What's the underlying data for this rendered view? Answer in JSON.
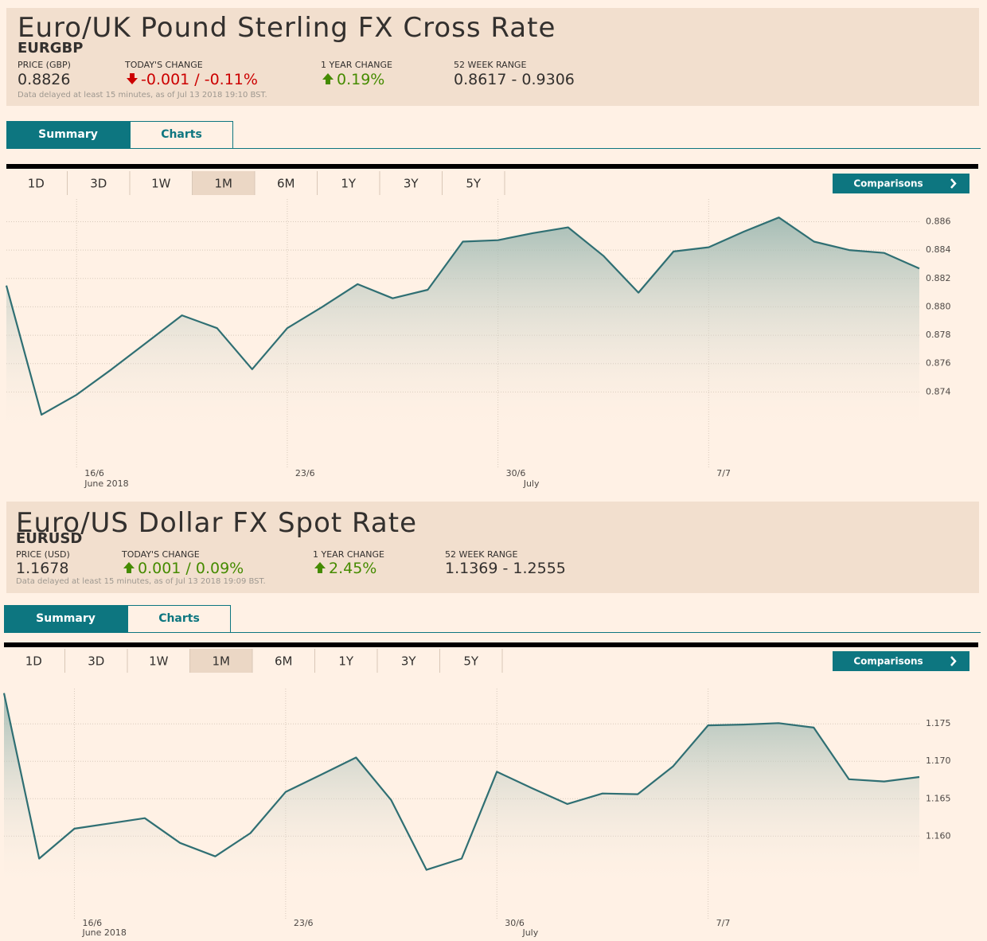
{
  "panels": [
    {
      "title": "Euro/UK Pound Sterling FX Cross Rate",
      "symbol": "EURGBP",
      "stats": [
        {
          "label": "PRICE (GBP)",
          "value": "0.8826"
        },
        {
          "label": "TODAY'S CHANGE",
          "value": "-0.001 / -0.11%",
          "direction": "down"
        },
        {
          "label": "1 YEAR CHANGE",
          "value": "0.19%",
          "direction": "up"
        },
        {
          "label": "52 WEEK RANGE",
          "value": "0.8617 - 0.9306"
        }
      ],
      "note": "Data delayed at least 15 minutes, as of Jul 13 2018 19:10 BST.",
      "tabs": [
        "Summary",
        "Charts"
      ],
      "active_tab": 0,
      "ranges": [
        "1D",
        "3D",
        "1W",
        "1M",
        "6M",
        "1Y",
        "3Y",
        "5Y"
      ],
      "active_range": 3,
      "comparisons": "Comparisons"
    },
    {
      "title": "Euro/US Dollar FX Spot Rate",
      "symbol": "EURUSD",
      "stats": [
        {
          "label": "PRICE (USD)",
          "value": "1.1678"
        },
        {
          "label": "TODAY'S CHANGE",
          "value": "0.001 / 0.09%",
          "direction": "up"
        },
        {
          "label": "1 YEAR CHANGE",
          "value": "2.45%",
          "direction": "up"
        },
        {
          "label": "52 WEEK RANGE",
          "value": "1.1369 - 1.2555"
        }
      ],
      "note": "Data delayed at least 15 minutes, as of Jul 13 2018 19:09 BST.",
      "tabs": [
        "Summary",
        "Charts"
      ],
      "active_tab": 0,
      "ranges": [
        "1D",
        "3D",
        "1W",
        "1M",
        "6M",
        "1Y",
        "3Y",
        "5Y"
      ],
      "active_range": 3,
      "comparisons": "Comparisons"
    }
  ],
  "chart_data": [
    {
      "type": "line",
      "color": "#2f6f73",
      "grid": true,
      "categories": [
        null,
        null,
        "16/6",
        null,
        null,
        null,
        null,
        null,
        "23/6",
        null,
        null,
        null,
        null,
        null,
        "30/6",
        null,
        null,
        null,
        null,
        null,
        "7/7",
        null,
        null,
        null,
        null,
        null,
        null
      ],
      "months": [
        null,
        null,
        "June 2018",
        null,
        null,
        null,
        null,
        null,
        null,
        null,
        null,
        null,
        null,
        null,
        null,
        "July",
        null,
        null,
        null,
        null,
        null,
        null,
        null,
        null,
        null,
        null,
        null
      ],
      "values": [
        0.8815,
        0.8724,
        0.8738,
        0.8756,
        0.8775,
        0.8794,
        0.8785,
        0.8756,
        0.8785,
        0.88,
        0.8816,
        0.8806,
        0.8812,
        0.8846,
        0.8847,
        0.8852,
        0.8856,
        0.8836,
        0.881,
        0.8839,
        0.8842,
        0.8853,
        0.8863,
        0.8846,
        0.884,
        0.8838,
        0.8827
      ],
      "ylim": [
        0.8688,
        0.8876
      ],
      "yticks": [
        0.874,
        0.876,
        0.878,
        {
          "value": 0.88,
          "label": "0.880"
        },
        0.882,
        0.884,
        0.886
      ]
    },
    {
      "type": "line",
      "color": "#2f6f73",
      "grid": true,
      "categories": [
        null,
        null,
        "16/6",
        null,
        null,
        null,
        null,
        null,
        "23/6",
        null,
        null,
        null,
        null,
        null,
        "30/6",
        null,
        null,
        null,
        null,
        null,
        "7/7",
        null,
        null,
        null,
        null,
        null,
        null
      ],
      "months": [
        null,
        null,
        "June 2018",
        null,
        null,
        null,
        null,
        null,
        null,
        null,
        null,
        null,
        null,
        null,
        null,
        "July",
        null,
        null,
        null,
        null,
        null,
        null,
        null,
        null,
        null,
        null,
        null
      ],
      "values": [
        1.1791,
        1.157,
        1.161,
        1.1617,
        1.1624,
        1.1591,
        1.1573,
        1.1604,
        1.1659,
        1.1682,
        1.1705,
        1.1648,
        1.1555,
        1.157,
        1.1686,
        1.1664,
        1.1643,
        1.1657,
        1.1656,
        1.1693,
        1.1748,
        1.1749,
        1.1751,
        1.1745,
        1.1676,
        1.1673,
        1.1679
      ],
      "ylim": [
        1.1494,
        1.1797
      ],
      "yticks": [
        {
          "value": 1.16,
          "label": "1.160"
        },
        1.165,
        {
          "value": 1.17,
          "label": "1.170"
        },
        1.175
      ]
    }
  ]
}
